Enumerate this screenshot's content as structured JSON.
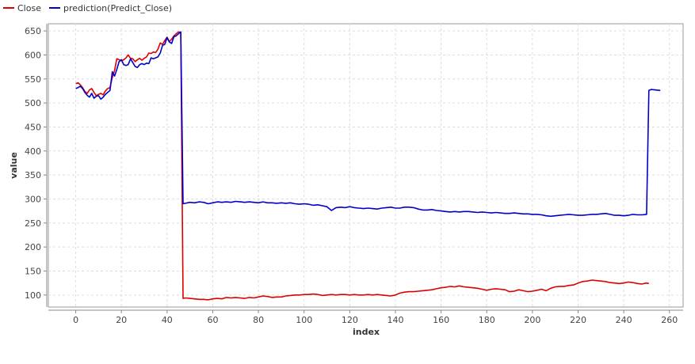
{
  "chart_data": {
    "type": "line",
    "title": "",
    "xlabel": "index",
    "ylabel": "value",
    "xlim": [
      -12,
      266
    ],
    "ylim": [
      75,
      665
    ],
    "xticks": [
      0,
      20,
      40,
      60,
      80,
      100,
      120,
      140,
      160,
      180,
      200,
      220,
      240,
      260
    ],
    "yticks": [
      100,
      150,
      200,
      250,
      300,
      350,
      400,
      450,
      500,
      550,
      600,
      650
    ],
    "grid": true,
    "legend_position": "top-left",
    "series": [
      {
        "name": "Close",
        "color": "#dd0000",
        "points": [
          [
            0,
            540
          ],
          [
            1,
            542
          ],
          [
            2,
            538
          ],
          [
            3,
            532
          ],
          [
            4,
            524
          ],
          [
            5,
            520
          ],
          [
            6,
            527
          ],
          [
            7,
            530
          ],
          [
            8,
            522
          ],
          [
            9,
            515
          ],
          [
            10,
            518
          ],
          [
            11,
            520
          ],
          [
            12,
            517
          ],
          [
            13,
            525
          ],
          [
            14,
            530
          ],
          [
            15,
            532
          ],
          [
            16,
            553
          ],
          [
            17,
            568
          ],
          [
            18,
            592
          ],
          [
            19,
            590
          ],
          [
            20,
            588
          ],
          [
            21,
            590
          ],
          [
            22,
            594
          ],
          [
            23,
            600
          ],
          [
            24,
            593
          ],
          [
            25,
            592
          ],
          [
            26,
            586
          ],
          [
            27,
            590
          ],
          [
            28,
            593
          ],
          [
            29,
            589
          ],
          [
            30,
            593
          ],
          [
            31,
            596
          ],
          [
            32,
            604
          ],
          [
            33,
            603
          ],
          [
            34,
            606
          ],
          [
            35,
            605
          ],
          [
            36,
            612
          ],
          [
            37,
            625
          ],
          [
            38,
            622
          ],
          [
            39,
            630
          ],
          [
            40,
            637
          ],
          [
            41,
            628
          ],
          [
            42,
            633
          ],
          [
            43,
            640
          ],
          [
            44,
            644
          ],
          [
            45,
            648
          ],
          [
            46,
            647
          ],
          [
            47,
            93
          ],
          [
            48,
            94
          ],
          [
            50,
            93
          ],
          [
            52,
            92
          ],
          [
            54,
            91
          ],
          [
            56,
            91
          ],
          [
            58,
            90
          ],
          [
            60,
            92
          ],
          [
            62,
            93
          ],
          [
            64,
            92
          ],
          [
            66,
            95
          ],
          [
            68,
            94
          ],
          [
            70,
            95
          ],
          [
            72,
            94
          ],
          [
            74,
            93
          ],
          [
            76,
            95
          ],
          [
            78,
            94
          ],
          [
            80,
            96
          ],
          [
            82,
            98
          ],
          [
            84,
            97
          ],
          [
            86,
            95
          ],
          [
            88,
            96
          ],
          [
            90,
            96
          ],
          [
            92,
            98
          ],
          [
            94,
            99
          ],
          [
            96,
            100
          ],
          [
            98,
            100
          ],
          [
            100,
            101
          ],
          [
            102,
            101
          ],
          [
            104,
            102
          ],
          [
            106,
            101
          ],
          [
            108,
            99
          ],
          [
            110,
            100
          ],
          [
            112,
            101
          ],
          [
            114,
            100
          ],
          [
            116,
            101
          ],
          [
            118,
            101
          ],
          [
            120,
            100
          ],
          [
            122,
            101
          ],
          [
            124,
            100
          ],
          [
            126,
            100
          ],
          [
            128,
            101
          ],
          [
            130,
            100
          ],
          [
            132,
            101
          ],
          [
            134,
            100
          ],
          [
            136,
            99
          ],
          [
            138,
            98
          ],
          [
            140,
            100
          ],
          [
            142,
            104
          ],
          [
            144,
            106
          ],
          [
            146,
            107
          ],
          [
            148,
            107
          ],
          [
            150,
            108
          ],
          [
            152,
            109
          ],
          [
            154,
            110
          ],
          [
            156,
            111
          ],
          [
            158,
            113
          ],
          [
            160,
            115
          ],
          [
            162,
            116
          ],
          [
            164,
            118
          ],
          [
            166,
            117
          ],
          [
            168,
            119
          ],
          [
            170,
            117
          ],
          [
            172,
            116
          ],
          [
            174,
            115
          ],
          [
            176,
            114
          ],
          [
            178,
            112
          ],
          [
            180,
            110
          ],
          [
            182,
            112
          ],
          [
            184,
            113
          ],
          [
            186,
            112
          ],
          [
            188,
            111
          ],
          [
            190,
            107
          ],
          [
            192,
            108
          ],
          [
            194,
            111
          ],
          [
            196,
            109
          ],
          [
            198,
            107
          ],
          [
            200,
            108
          ],
          [
            202,
            110
          ],
          [
            204,
            112
          ],
          [
            206,
            109
          ],
          [
            208,
            114
          ],
          [
            210,
            117
          ],
          [
            212,
            118
          ],
          [
            214,
            118
          ],
          [
            216,
            120
          ],
          [
            218,
            121
          ],
          [
            220,
            125
          ],
          [
            222,
            128
          ],
          [
            224,
            129
          ],
          [
            226,
            131
          ],
          [
            228,
            130
          ],
          [
            230,
            129
          ],
          [
            232,
            128
          ],
          [
            234,
            126
          ],
          [
            236,
            125
          ],
          [
            238,
            124
          ],
          [
            240,
            125
          ],
          [
            242,
            127
          ],
          [
            244,
            126
          ],
          [
            246,
            124
          ],
          [
            248,
            123
          ],
          [
            250,
            125
          ],
          [
            251,
            124
          ]
        ]
      },
      {
        "name": "prediction(Predict_Close)",
        "color": "#0000cc",
        "points": [
          [
            0,
            530
          ],
          [
            1,
            532
          ],
          [
            2,
            535
          ],
          [
            3,
            530
          ],
          [
            4,
            522
          ],
          [
            5,
            516
          ],
          [
            6,
            512
          ],
          [
            7,
            520
          ],
          [
            8,
            510
          ],
          [
            9,
            514
          ],
          [
            10,
            515
          ],
          [
            11,
            508
          ],
          [
            12,
            512
          ],
          [
            13,
            518
          ],
          [
            14,
            522
          ],
          [
            15,
            526
          ],
          [
            16,
            565
          ],
          [
            17,
            556
          ],
          [
            18,
            570
          ],
          [
            19,
            586
          ],
          [
            20,
            590
          ],
          [
            21,
            580
          ],
          [
            22,
            578
          ],
          [
            23,
            580
          ],
          [
            24,
            592
          ],
          [
            25,
            584
          ],
          [
            26,
            576
          ],
          [
            27,
            574
          ],
          [
            28,
            580
          ],
          [
            29,
            582
          ],
          [
            30,
            580
          ],
          [
            31,
            583
          ],
          [
            32,
            582
          ],
          [
            33,
            594
          ],
          [
            34,
            592
          ],
          [
            35,
            594
          ],
          [
            36,
            596
          ],
          [
            37,
            604
          ],
          [
            38,
            620
          ],
          [
            39,
            622
          ],
          [
            40,
            636
          ],
          [
            41,
            627
          ],
          [
            42,
            624
          ],
          [
            43,
            638
          ],
          [
            44,
            640
          ],
          [
            45,
            644
          ],
          [
            46,
            648
          ],
          [
            47,
            290
          ],
          [
            48,
            291
          ],
          [
            50,
            293
          ],
          [
            52,
            292
          ],
          [
            54,
            294
          ],
          [
            56,
            293
          ],
          [
            58,
            290
          ],
          [
            60,
            292
          ],
          [
            62,
            294
          ],
          [
            64,
            293
          ],
          [
            66,
            294
          ],
          [
            68,
            293
          ],
          [
            70,
            295
          ],
          [
            72,
            294
          ],
          [
            74,
            293
          ],
          [
            76,
            294
          ],
          [
            78,
            293
          ],
          [
            80,
            292
          ],
          [
            82,
            294
          ],
          [
            84,
            292
          ],
          [
            86,
            292
          ],
          [
            88,
            291
          ],
          [
            90,
            292
          ],
          [
            92,
            291
          ],
          [
            94,
            292
          ],
          [
            96,
            290
          ],
          [
            98,
            289
          ],
          [
            100,
            290
          ],
          [
            102,
            289
          ],
          [
            104,
            287
          ],
          [
            106,
            288
          ],
          [
            108,
            286
          ],
          [
            110,
            284
          ],
          [
            112,
            276
          ],
          [
            114,
            282
          ],
          [
            116,
            283
          ],
          [
            118,
            282
          ],
          [
            120,
            284
          ],
          [
            122,
            282
          ],
          [
            124,
            281
          ],
          [
            126,
            280
          ],
          [
            128,
            281
          ],
          [
            130,
            280
          ],
          [
            132,
            279
          ],
          [
            134,
            281
          ],
          [
            136,
            282
          ],
          [
            138,
            283
          ],
          [
            140,
            281
          ],
          [
            142,
            281
          ],
          [
            144,
            283
          ],
          [
            146,
            283
          ],
          [
            148,
            282
          ],
          [
            150,
            279
          ],
          [
            152,
            277
          ],
          [
            154,
            277
          ],
          [
            156,
            278
          ],
          [
            158,
            276
          ],
          [
            160,
            275
          ],
          [
            162,
            274
          ],
          [
            164,
            273
          ],
          [
            166,
            274
          ],
          [
            168,
            273
          ],
          [
            170,
            274
          ],
          [
            172,
            274
          ],
          [
            174,
            273
          ],
          [
            176,
            272
          ],
          [
            178,
            273
          ],
          [
            180,
            272
          ],
          [
            182,
            271
          ],
          [
            184,
            272
          ],
          [
            186,
            271
          ],
          [
            188,
            270
          ],
          [
            190,
            270
          ],
          [
            192,
            271
          ],
          [
            194,
            270
          ],
          [
            196,
            269
          ],
          [
            198,
            269
          ],
          [
            200,
            268
          ],
          [
            202,
            268
          ],
          [
            204,
            267
          ],
          [
            206,
            265
          ],
          [
            208,
            264
          ],
          [
            210,
            265
          ],
          [
            212,
            266
          ],
          [
            214,
            267
          ],
          [
            216,
            268
          ],
          [
            218,
            267
          ],
          [
            220,
            266
          ],
          [
            222,
            266
          ],
          [
            224,
            267
          ],
          [
            226,
            268
          ],
          [
            228,
            268
          ],
          [
            230,
            269
          ],
          [
            232,
            270
          ],
          [
            234,
            268
          ],
          [
            236,
            266
          ],
          [
            238,
            266
          ],
          [
            240,
            265
          ],
          [
            242,
            266
          ],
          [
            244,
            268
          ],
          [
            246,
            267
          ],
          [
            248,
            267
          ],
          [
            250,
            268
          ],
          [
            251,
            526
          ],
          [
            252,
            528
          ],
          [
            254,
            527
          ],
          [
            256,
            526
          ]
        ]
      }
    ]
  }
}
